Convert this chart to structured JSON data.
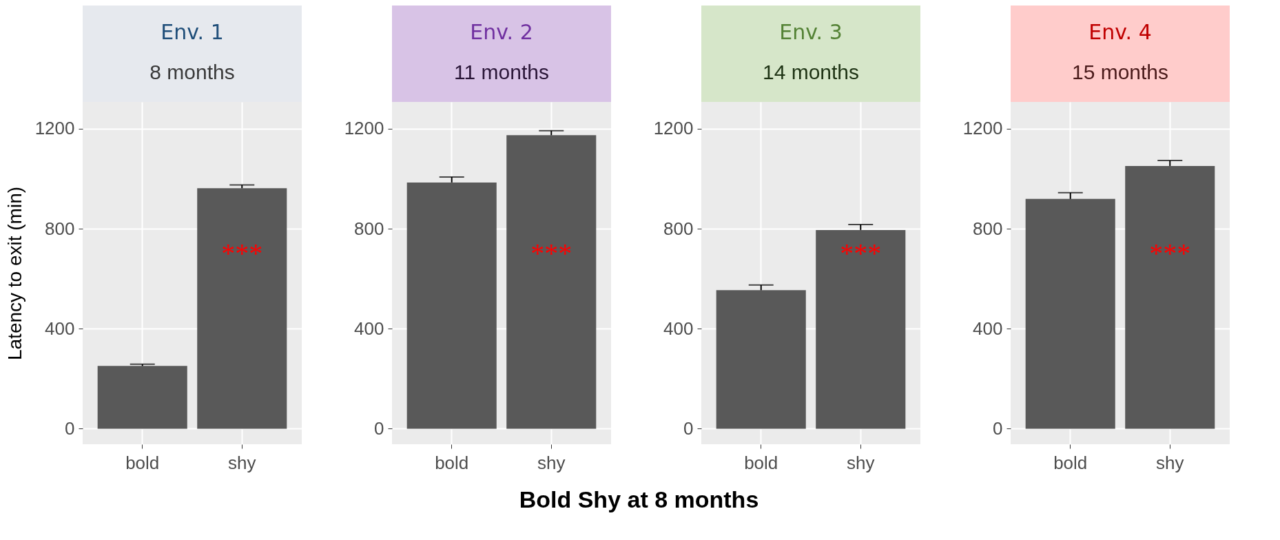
{
  "chart_data": [
    {
      "type": "bar",
      "title": "Env. 1",
      "subtitle": "8 months",
      "ylabel": "Latency to exit (min)",
      "categories": [
        "bold",
        "shy"
      ],
      "values": [
        251,
        962
      ],
      "color": "#595959",
      "errors": [
        [
          251,
          258
        ],
        [
          962,
          975
        ]
      ],
      "ylim": [
        -62,
        1307
      ],
      "yticks": [
        0,
        400,
        800,
        1200
      ],
      "grid": true,
      "annotations": [
        "***"
      ]
    },
    {
      "type": "bar",
      "title": "Env. 2",
      "subtitle": "11 months",
      "xlabel": "Bold Shy at 8 months",
      "categories": [
        "bold",
        "shy"
      ],
      "values": [
        985,
        1174
      ],
      "color": "#595959",
      "errors": [
        [
          985,
          1007
        ],
        [
          1174,
          1192
        ]
      ],
      "ylim": [
        -62,
        1307
      ],
      "yticks": [
        0,
        400,
        800,
        1200
      ],
      "grid": true,
      "annotations": [
        "***"
      ]
    },
    {
      "type": "bar",
      "title": "Env. 3",
      "subtitle": "14 months",
      "categories": [
        "bold",
        "shy"
      ],
      "values": [
        554,
        795
      ],
      "color": "#595959",
      "errors": [
        [
          554,
          575
        ],
        [
          795,
          817
        ]
      ],
      "ylim": [
        -62,
        1307
      ],
      "yticks": [
        0,
        400,
        800,
        1200
      ],
      "grid": true,
      "annotations": [
        "***"
      ]
    },
    {
      "type": "bar",
      "title": "Env. 4",
      "subtitle": "15 months",
      "categories": [
        "bold",
        "shy"
      ],
      "values": [
        919,
        1051
      ],
      "color": "#595959",
      "errors": [
        [
          919,
          944
        ],
        [
          1051,
          1073
        ]
      ],
      "ylim": [
        -62,
        1307
      ],
      "yticks": [
        0,
        400,
        800,
        1200
      ],
      "grid": true,
      "annotations": [
        "***"
      ]
    }
  ]
}
